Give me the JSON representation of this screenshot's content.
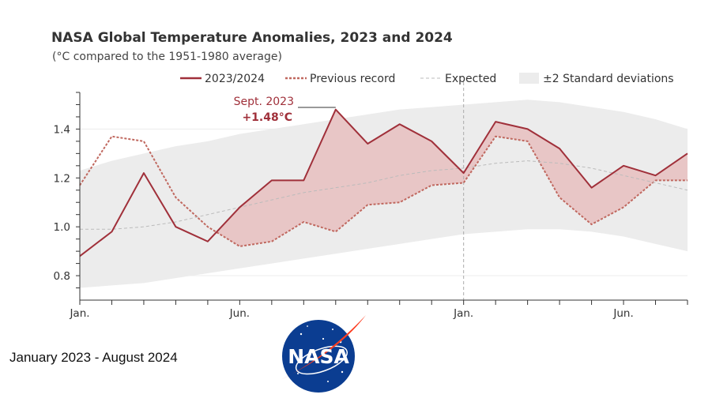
{
  "caption": "January 2023 - August 2024",
  "logo": {
    "text": "NASA",
    "colors": {
      "blue": "#0b3d91",
      "red": "#fc3d21"
    }
  },
  "chart_data": {
    "type": "line",
    "title": "NASA Global Temperature Anomalies, 2023 and 2024",
    "subtitle": "(°C compared to the 1951-1980 average)",
    "x": [
      "2023-01",
      "2023-02",
      "2023-03",
      "2023-04",
      "2023-05",
      "2023-06",
      "2023-07",
      "2023-08",
      "2023-09",
      "2023-10",
      "2023-11",
      "2023-12",
      "2024-01",
      "2024-02",
      "2024-03",
      "2024-04",
      "2024-05",
      "2024-06",
      "2024-07",
      "2024-08"
    ],
    "x_tick_labels": [
      "Jan.",
      "Jun.",
      "Jan.",
      "Jun."
    ],
    "ylim": [
      0.7,
      1.55
    ],
    "y_ticks": [
      "0.8",
      "1.0",
      "1.2",
      "1.4"
    ],
    "series": [
      {
        "name": "2023/2024",
        "style": "solid",
        "color": "#a0303a",
        "values": [
          0.88,
          0.98,
          1.22,
          1.0,
          0.94,
          1.08,
          1.19,
          1.19,
          1.48,
          1.34,
          1.42,
          1.35,
          1.22,
          1.43,
          1.4,
          1.32,
          1.16,
          1.25,
          1.21,
          1.3
        ]
      },
      {
        "name": "Previous record",
        "style": "dotted",
        "color": "#c0685f",
        "values": [
          1.17,
          1.37,
          1.35,
          1.12,
          1.0,
          0.92,
          0.94,
          1.02,
          0.98,
          1.09,
          1.1,
          1.17,
          1.18,
          1.37,
          1.35,
          1.12,
          1.01,
          1.08,
          1.19,
          1.19
        ]
      },
      {
        "name": "Expected",
        "style": "dashed",
        "color": "#bbbbbb",
        "values": [
          0.99,
          0.99,
          1.0,
          1.02,
          1.05,
          1.08,
          1.11,
          1.14,
          1.16,
          1.18,
          1.21,
          1.23,
          1.24,
          1.26,
          1.27,
          1.26,
          1.24,
          1.21,
          1.18,
          1.15
        ]
      }
    ],
    "band": {
      "name": "±2 Standard deviations",
      "color": "#ececec",
      "lower": [
        0.75,
        0.76,
        0.77,
        0.79,
        0.81,
        0.83,
        0.85,
        0.87,
        0.89,
        0.91,
        0.93,
        0.95,
        0.97,
        0.98,
        0.99,
        0.99,
        0.98,
        0.96,
        0.93,
        0.9
      ],
      "upper": [
        1.23,
        1.27,
        1.3,
        1.33,
        1.35,
        1.38,
        1.4,
        1.42,
        1.44,
        1.46,
        1.48,
        1.49,
        1.5,
        1.51,
        1.52,
        1.51,
        1.49,
        1.47,
        1.44,
        1.4
      ]
    },
    "fill_between_color": "#e8c6c6",
    "annotation": {
      "line1": "Sept. 2023",
      "line2": "+1.48°C"
    },
    "legend_position": "top",
    "grid": true
  }
}
